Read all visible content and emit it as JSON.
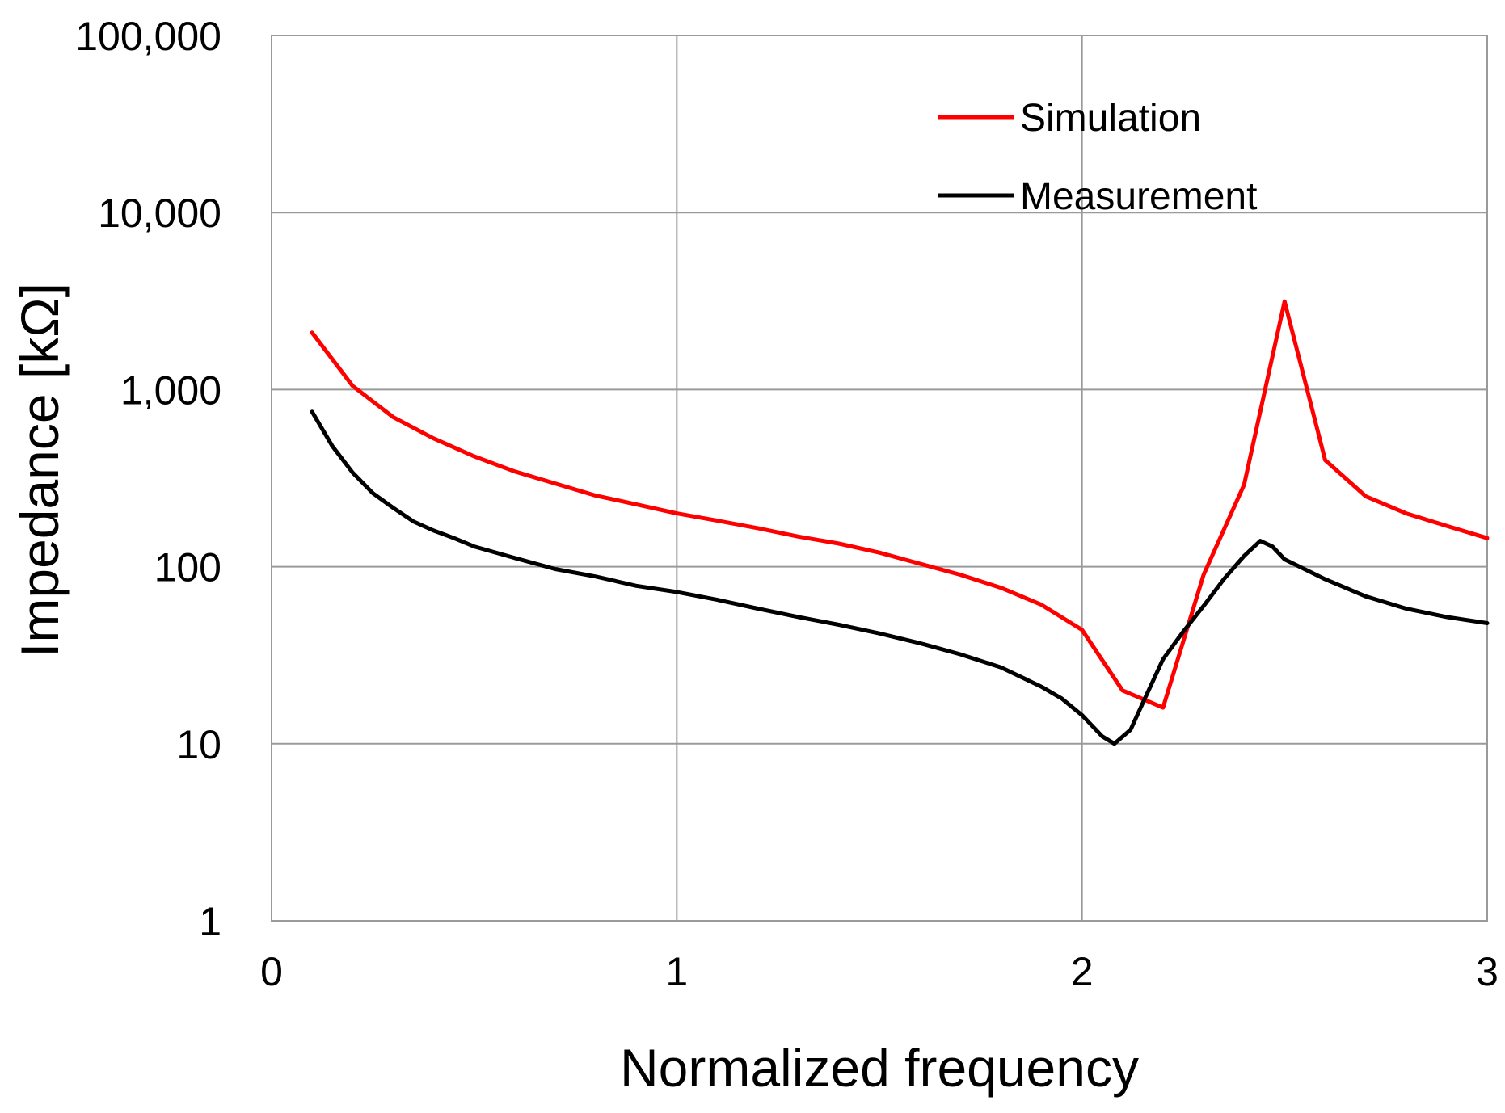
{
  "chart_data": {
    "type": "line",
    "title": "",
    "xlabel": "Normalized frequency",
    "ylabel": "Impedance [kΩ]",
    "xlim": [
      0,
      3
    ],
    "ylim": [
      1,
      100000
    ],
    "yscale": "log",
    "grid": true,
    "legend_position": "top-right",
    "x_ticks": [
      0,
      1,
      2,
      3
    ],
    "x_tick_labels": [
      "0",
      "1",
      "2",
      "3"
    ],
    "y_ticks": [
      1,
      10,
      100,
      1000,
      10000,
      100000
    ],
    "y_tick_labels": [
      "1",
      "10",
      "100",
      "1,000",
      "10,000",
      "100,000"
    ],
    "series": [
      {
        "name": "Simulation",
        "color": "#ff0000",
        "x": [
          0.1,
          0.2,
          0.3,
          0.4,
          0.5,
          0.6,
          0.7,
          0.8,
          0.9,
          1.0,
          1.1,
          1.2,
          1.3,
          1.4,
          1.5,
          1.6,
          1.7,
          1.8,
          1.9,
          2.0,
          2.1,
          2.2,
          2.3,
          2.4,
          2.5,
          2.6,
          2.7,
          2.8,
          2.9,
          3.0
        ],
        "y": [
          2100,
          1050,
          700,
          530,
          420,
          345,
          295,
          252,
          225,
          200,
          182,
          165,
          148,
          135,
          120,
          104,
          90,
          76,
          61,
          44,
          20,
          16,
          90,
          290,
          3150,
          400,
          250,
          200,
          170,
          145
        ]
      },
      {
        "name": "Measurement",
        "color": "#000000",
        "x": [
          0.1,
          0.15,
          0.2,
          0.25,
          0.3,
          0.35,
          0.4,
          0.45,
          0.5,
          0.6,
          0.7,
          0.8,
          0.9,
          1.0,
          1.1,
          1.2,
          1.3,
          1.4,
          1.5,
          1.6,
          1.7,
          1.8,
          1.9,
          1.95,
          2.0,
          2.05,
          2.08,
          2.12,
          2.15,
          2.2,
          2.25,
          2.3,
          2.35,
          2.4,
          2.44,
          2.47,
          2.5,
          2.6,
          2.7,
          2.8,
          2.9,
          3.0
        ],
        "y": [
          750,
          480,
          340,
          260,
          215,
          180,
          160,
          145,
          130,
          112,
          97,
          88,
          78,
          72,
          65,
          58,
          52,
          47,
          42,
          37,
          32,
          27,
          21,
          18,
          14.5,
          11,
          10,
          12,
          17,
          30,
          43,
          60,
          85,
          115,
          140,
          130,
          110,
          85,
          68,
          58,
          52,
          48
        ]
      }
    ]
  }
}
